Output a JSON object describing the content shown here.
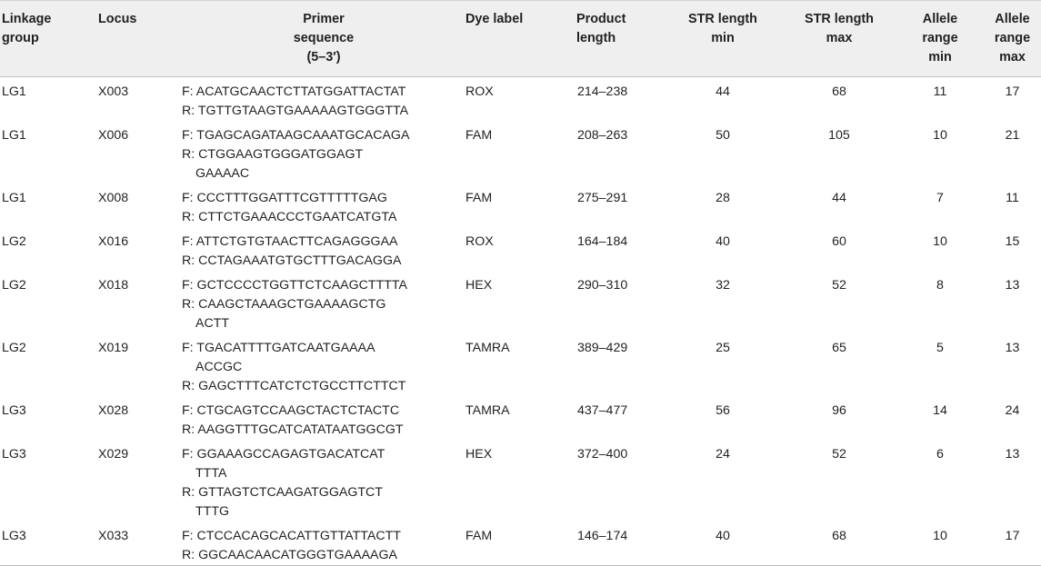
{
  "headers": {
    "linkage_group": [
      "Linkage",
      "group"
    ],
    "locus": [
      "Locus"
    ],
    "primer": [
      "Primer",
      "sequence",
      "(5–3′)"
    ],
    "dye": [
      "Dye label"
    ],
    "product": [
      "Product",
      "length"
    ],
    "str_min": [
      "STR length",
      "min"
    ],
    "str_max": [
      "STR length",
      "max"
    ],
    "allele_min": [
      "Allele",
      "range",
      "min"
    ],
    "allele_max": [
      "Allele",
      "range",
      "max"
    ]
  },
  "rows": [
    {
      "lg": "LG1",
      "locus": "X003",
      "primer": [
        [
          "F: ACATGCAACTCTTATGGATTACTAT",
          ""
        ],
        [
          "R: TGTTGTAAGTGAAAAAGTGGGTTA",
          ""
        ]
      ],
      "dye": "ROX",
      "product": "214–238",
      "str_min": "44",
      "str_max": "68",
      "allele_min": "11",
      "allele_max": "17"
    },
    {
      "lg": "LG1",
      "locus": "X006",
      "primer": [
        [
          "F: TGAGCAGATAAGCAAATGCACAGA",
          ""
        ],
        [
          "R: CTGGAAGTGGGATGGAGT",
          "GAAAAC"
        ]
      ],
      "dye": "FAM",
      "product": "208–263",
      "str_min": "50",
      "str_max": "105",
      "allele_min": "10",
      "allele_max": "21"
    },
    {
      "lg": "LG1",
      "locus": "X008",
      "primer": [
        [
          "F: CCCTTTGGATTTCGTTTTTGAG",
          ""
        ],
        [
          "R: CTTCTGAAACCCTGAATCATGTA",
          ""
        ]
      ],
      "dye": "FAM",
      "product": "275–291",
      "str_min": "28",
      "str_max": "44",
      "allele_min": "7",
      "allele_max": "11"
    },
    {
      "lg": "LG2",
      "locus": "X016",
      "primer": [
        [
          "F: ATTCTGTGTAACTTCAGAGGGAA",
          ""
        ],
        [
          "R: CCTAGAAATGTGCTTTGACAGGA",
          ""
        ]
      ],
      "dye": "ROX",
      "product": "164–184",
      "str_min": "40",
      "str_max": "60",
      "allele_min": "10",
      "allele_max": "15"
    },
    {
      "lg": "LG2",
      "locus": "X018",
      "primer": [
        [
          "F: GCTCCCCTGGTTCTCAAGCTTTTA",
          ""
        ],
        [
          "R: CAAGCTAAAGCTGAAAAGCTG",
          "ACTT"
        ]
      ],
      "dye": "HEX",
      "product": "290–310",
      "str_min": "32",
      "str_max": "52",
      "allele_min": "8",
      "allele_max": "13"
    },
    {
      "lg": "LG2",
      "locus": "X019",
      "primer": [
        [
          "F: TGACATTTTGATCAATGAAAA",
          "ACCGC"
        ],
        [
          "R: GAGCTTTCATCTCTGCCTTCTTCT",
          ""
        ]
      ],
      "dye": "TAMRA",
      "product": "389–429",
      "str_min": "25",
      "str_max": "65",
      "allele_min": "5",
      "allele_max": "13"
    },
    {
      "lg": "LG3",
      "locus": "X028",
      "primer": [
        [
          "F: CTGCAGTCCAAGCTACTCTACTC",
          ""
        ],
        [
          "R: AAGGTTTGCATCATATAATGGCGT",
          ""
        ]
      ],
      "dye": "TAMRA",
      "product": "437–477",
      "str_min": "56",
      "str_max": "96",
      "allele_min": "14",
      "allele_max": "24"
    },
    {
      "lg": "LG3",
      "locus": "X029",
      "primer": [
        [
          "F: GGAAAGCCAGAGTGACATCAT",
          "TTTA"
        ],
        [
          "R: GTTAGTCTCAAGATGGAGTCT",
          "TTTG"
        ]
      ],
      "dye": "HEX",
      "product": "372–400",
      "str_min": "24",
      "str_max": "52",
      "allele_min": "6",
      "allele_max": "13"
    },
    {
      "lg": "LG3",
      "locus": "X033",
      "primer": [
        [
          "F: CTCCACAGCACATTGTTATTACTT",
          ""
        ],
        [
          "R: GGCAACAACATGGGTGAAAAGA",
          ""
        ]
      ],
      "dye": "FAM",
      "product": "146–174",
      "str_min": "40",
      "str_max": "68",
      "allele_min": "10",
      "allele_max": "17"
    }
  ]
}
